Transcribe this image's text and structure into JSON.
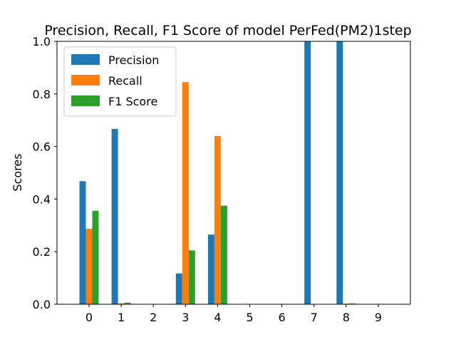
{
  "chart_data": {
    "type": "bar",
    "title": "Precision, Recall, F1 Score of model PerFed(PM2)1step",
    "xlabel": "",
    "ylabel": "Scores",
    "ylim": [
      0,
      1.0
    ],
    "yticks": [
      "0.0",
      "0.2",
      "0.4",
      "0.6",
      "0.8",
      "1.0"
    ],
    "categories": [
      "0",
      "1",
      "2",
      "3",
      "4",
      "5",
      "6",
      "7",
      "8",
      "9"
    ],
    "legend_position": "top-left",
    "grid": false,
    "series": [
      {
        "name": "Precision",
        "color": "#1f77b4",
        "values": [
          0.468,
          0.667,
          0.0,
          0.117,
          0.265,
          0.0,
          0.0,
          1.0,
          1.0,
          0.0
        ]
      },
      {
        "name": "Recall",
        "color": "#ff7f0e",
        "values": [
          0.287,
          0.003,
          0.0,
          0.845,
          0.64,
          0.0,
          0.0,
          0.0,
          0.002,
          0.0
        ]
      },
      {
        "name": "F1 Score",
        "color": "#2ca02c",
        "values": [
          0.355,
          0.006,
          0.0,
          0.205,
          0.375,
          0.0,
          0.0,
          0.0,
          0.003,
          0.0
        ]
      }
    ]
  }
}
